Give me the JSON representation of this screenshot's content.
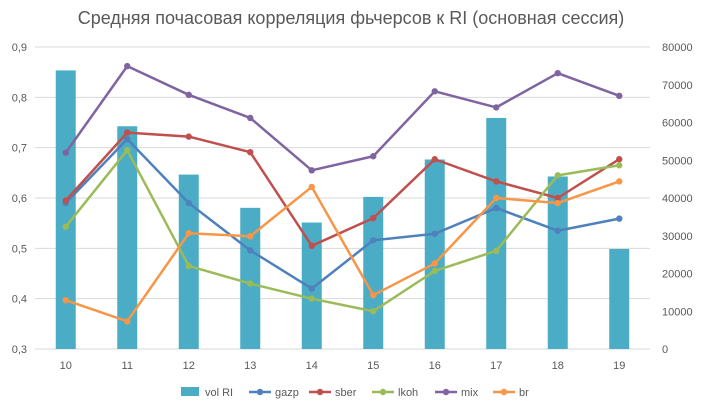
{
  "chart_data": {
    "type": "bar+line",
    "title": "Средняя почасовая корреляция фьчерсов к RI  (основная сессия)",
    "categories": [
      "10",
      "11",
      "12",
      "13",
      "14",
      "15",
      "16",
      "17",
      "18",
      "19"
    ],
    "y_left": {
      "min": 0.3,
      "max": 0.9,
      "step": 0.1,
      "ticks": [
        "0,3",
        "0,4",
        "0,5",
        "0,6",
        "0,7",
        "0,8",
        "0,9"
      ]
    },
    "y_right": {
      "min": 0,
      "max": 80000,
      "step": 10000,
      "ticks": [
        "0",
        "10000",
        "20000",
        "30000",
        "40000",
        "50000",
        "60000",
        "70000",
        "80000"
      ]
    },
    "bar_series": {
      "name": "vol RI",
      "color": "#4BACC6",
      "axis": "right",
      "values": [
        73800,
        59000,
        46200,
        37400,
        33500,
        40300,
        50200,
        61200,
        45700,
        26500
      ]
    },
    "line_series": [
      {
        "name": "gazp",
        "color": "#4F81BD",
        "values": [
          0.59,
          0.717,
          0.59,
          0.496,
          0.42,
          0.516,
          0.529,
          0.58,
          0.535,
          0.559
        ]
      },
      {
        "name": "sber",
        "color": "#C0504D",
        "values": [
          0.595,
          0.73,
          0.722,
          0.691,
          0.505,
          0.56,
          0.677,
          0.633,
          0.6,
          0.677
        ]
      },
      {
        "name": "lkoh",
        "color": "#9BBB59",
        "values": [
          0.543,
          0.695,
          0.465,
          0.43,
          0.4,
          0.375,
          0.455,
          0.495,
          0.645,
          0.665
        ]
      },
      {
        "name": "mix",
        "color": "#8064A2",
        "values": [
          0.69,
          0.862,
          0.805,
          0.759,
          0.655,
          0.683,
          0.812,
          0.78,
          0.848,
          0.803
        ]
      },
      {
        "name": "br",
        "color": "#F79646",
        "values": [
          0.397,
          0.355,
          0.53,
          0.524,
          0.622,
          0.407,
          0.47,
          0.6,
          0.59,
          0.633
        ]
      }
    ],
    "grid": true,
    "legend_position": "bottom"
  }
}
